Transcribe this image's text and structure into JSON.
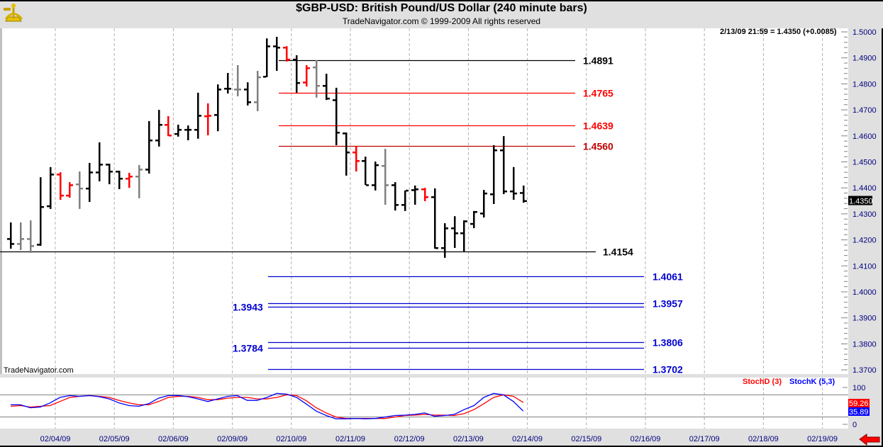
{
  "header": {
    "title": "$GBP-USD:  British Pound/US Dollar  (240 minute bars)",
    "subtitle": "TradeNavigator.com © 1999-2009 All rights reserved",
    "logo": "sextant-logo",
    "readout": "2/13/09 21:59 = 1.4350 (+0.0085)"
  },
  "watermark": "TradeNavigator.com",
  "colors": {
    "up": "#000000",
    "down": "#ff0000",
    "neutral": "#808080",
    "axis_text": "#000080",
    "stochD": "#ff0000",
    "stochK": "#0000ff",
    "panel_bg": "#e0e0e0"
  },
  "chart_data": [
    {
      "type": "ohlc",
      "title": "$GBP-USD:  British Pound/US Dollar  (240 minute bars)",
      "ylim": [
        1.365,
        1.5015
      ],
      "y_ticks": [
        "1.3700",
        "1.3800",
        "1.3900",
        "1.4000",
        "1.4100",
        "1.4200",
        "1.4300",
        "1.4400",
        "1.4500",
        "1.4600",
        "1.4700",
        "1.4800",
        "1.4900",
        "1.5000"
      ],
      "x_ticks": [
        "02/04/09",
        "02/05/09",
        "02/06/09",
        "02/09/09",
        "02/10/09",
        "02/11/09",
        "02/12/09",
        "02/13/09",
        "02/14/09",
        "02/15/09",
        "02/16/09",
        "02/17/09",
        "02/18/09",
        "02/19/09"
      ],
      "grid": "vertical dashed",
      "last_price": "1.4350",
      "bars": [
        {
          "o": 1.4204,
          "h": 1.4267,
          "l": 1.4166,
          "c": 1.4185,
          "color": "black"
        },
        {
          "o": 1.4185,
          "h": 1.4267,
          "l": 1.4161,
          "c": 1.4204,
          "color": "gray"
        },
        {
          "o": 1.4204,
          "h": 1.4275,
          "l": 1.415,
          "c": 1.4177,
          "color": "gray"
        },
        {
          "o": 1.4182,
          "h": 1.4441,
          "l": 1.4177,
          "c": 1.4327,
          "color": "black"
        },
        {
          "o": 1.433,
          "h": 1.448,
          "l": 1.4319,
          "c": 1.4452,
          "color": "black"
        },
        {
          "o": 1.4452,
          "h": 1.446,
          "l": 1.4354,
          "c": 1.4371,
          "color": "red"
        },
        {
          "o": 1.4371,
          "h": 1.4422,
          "l": 1.4362,
          "c": 1.4411,
          "color": "red"
        },
        {
          "o": 1.4414,
          "h": 1.4463,
          "l": 1.4319,
          "c": 1.4398,
          "color": "gray"
        },
        {
          "o": 1.4398,
          "h": 1.4496,
          "l": 1.4346,
          "c": 1.446,
          "color": "black"
        },
        {
          "o": 1.446,
          "h": 1.4575,
          "l": 1.4425,
          "c": 1.449,
          "color": "black"
        },
        {
          "o": 1.449,
          "h": 1.4493,
          "l": 1.4414,
          "c": 1.4463,
          "color": "black"
        },
        {
          "o": 1.4463,
          "h": 1.4466,
          "l": 1.4395,
          "c": 1.4436,
          "color": "black"
        },
        {
          "o": 1.4436,
          "h": 1.4458,
          "l": 1.44,
          "c": 1.4444,
          "color": "red"
        },
        {
          "o": 1.4444,
          "h": 1.4488,
          "l": 1.436,
          "c": 1.4471,
          "color": "gray"
        },
        {
          "o": 1.4471,
          "h": 1.4657,
          "l": 1.4455,
          "c": 1.4583,
          "color": "black"
        },
        {
          "o": 1.4583,
          "h": 1.47,
          "l": 1.4559,
          "c": 1.4643,
          "color": "black"
        },
        {
          "o": 1.4643,
          "h": 1.4676,
          "l": 1.4599,
          "c": 1.4602,
          "color": "red"
        },
        {
          "o": 1.4608,
          "h": 1.4643,
          "l": 1.4597,
          "c": 1.4624,
          "color": "black"
        },
        {
          "o": 1.4624,
          "h": 1.464,
          "l": 1.4583,
          "c": 1.4624,
          "color": "black"
        },
        {
          "o": 1.4624,
          "h": 1.4766,
          "l": 1.4589,
          "c": 1.4678,
          "color": "black"
        },
        {
          "o": 1.4676,
          "h": 1.4725,
          "l": 1.4602,
          "c": 1.4678,
          "color": "red"
        },
        {
          "o": 1.4681,
          "h": 1.4798,
          "l": 1.4618,
          "c": 1.4779,
          "color": "black"
        },
        {
          "o": 1.4782,
          "h": 1.4842,
          "l": 1.4763,
          "c": 1.4782,
          "color": "black"
        },
        {
          "o": 1.4779,
          "h": 1.4872,
          "l": 1.4752,
          "c": 1.4779,
          "color": "gray"
        },
        {
          "o": 1.4779,
          "h": 1.4806,
          "l": 1.4717,
          "c": 1.473,
          "color": "black"
        },
        {
          "o": 1.473,
          "h": 1.485,
          "l": 1.4695,
          "c": 1.4826,
          "color": "gray"
        },
        {
          "o": 1.4828,
          "h": 1.4975,
          "l": 1.4826,
          "c": 1.4945,
          "color": "black"
        },
        {
          "o": 1.4945,
          "h": 1.4981,
          "l": 1.485,
          "c": 1.494,
          "color": "black"
        },
        {
          "o": 1.494,
          "h": 1.4945,
          "l": 1.4886,
          "c": 1.4894,
          "color": "red"
        },
        {
          "o": 1.4894,
          "h": 1.491,
          "l": 1.4766,
          "c": 1.4804,
          "color": "black"
        },
        {
          "o": 1.4806,
          "h": 1.4872,
          "l": 1.479,
          "c": 1.4861,
          "color": "red"
        },
        {
          "o": 1.4864,
          "h": 1.4891,
          "l": 1.4747,
          "c": 1.4793,
          "color": "gray"
        },
        {
          "o": 1.4793,
          "h": 1.4839,
          "l": 1.4738,
          "c": 1.4744,
          "color": "black"
        },
        {
          "o": 1.4738,
          "h": 1.4785,
          "l": 1.4564,
          "c": 1.4613,
          "color": "black"
        },
        {
          "o": 1.461,
          "h": 1.4613,
          "l": 1.4447,
          "c": 1.4537,
          "color": "black"
        },
        {
          "o": 1.4537,
          "h": 1.4561,
          "l": 1.4463,
          "c": 1.4504,
          "color": "red"
        },
        {
          "o": 1.4504,
          "h": 1.452,
          "l": 1.4411,
          "c": 1.4411,
          "color": "black"
        },
        {
          "o": 1.4411,
          "h": 1.4501,
          "l": 1.439,
          "c": 1.4488,
          "color": "black"
        },
        {
          "o": 1.4485,
          "h": 1.455,
          "l": 1.4335,
          "c": 1.4411,
          "color": "gray"
        },
        {
          "o": 1.4411,
          "h": 1.4422,
          "l": 1.4313,
          "c": 1.4335,
          "color": "black"
        },
        {
          "o": 1.4335,
          "h": 1.439,
          "l": 1.4311,
          "c": 1.439,
          "color": "black"
        },
        {
          "o": 1.4392,
          "h": 1.4409,
          "l": 1.4335,
          "c": 1.4395,
          "color": "black"
        },
        {
          "o": 1.4395,
          "h": 1.44,
          "l": 1.4349,
          "c": 1.4365,
          "color": "red"
        },
        {
          "o": 1.4365,
          "h": 1.4398,
          "l": 1.4166,
          "c": 1.4169,
          "color": "black"
        },
        {
          "o": 1.4169,
          "h": 1.4264,
          "l": 1.4131,
          "c": 1.4245,
          "color": "black"
        },
        {
          "o": 1.4245,
          "h": 1.4291,
          "l": 1.4169,
          "c": 1.4226,
          "color": "black"
        },
        {
          "o": 1.4226,
          "h": 1.4275,
          "l": 1.4153,
          "c": 1.4272,
          "color": "black"
        },
        {
          "o": 1.4262,
          "h": 1.4311,
          "l": 1.4245,
          "c": 1.4308,
          "color": "black"
        },
        {
          "o": 1.4302,
          "h": 1.4392,
          "l": 1.4286,
          "c": 1.4379,
          "color": "black"
        },
        {
          "o": 1.4376,
          "h": 1.4564,
          "l": 1.4338,
          "c": 1.4545,
          "color": "black"
        },
        {
          "o": 1.4545,
          "h": 1.4599,
          "l": 1.4376,
          "c": 1.4387,
          "color": "black"
        },
        {
          "o": 1.4387,
          "h": 1.448,
          "l": 1.4354,
          "c": 1.4379,
          "color": "black"
        },
        {
          "o": 1.4381,
          "h": 1.4409,
          "l": 1.4343,
          "c": 1.435,
          "color": "black"
        }
      ],
      "levels": [
        {
          "value": 1.4891,
          "label": "1.4891",
          "color": "#000000",
          "label_side": "right"
        },
        {
          "value": 1.4765,
          "label": "1.4765",
          "color": "#ff0000",
          "label_side": "right"
        },
        {
          "value": 1.4639,
          "label": "1.4639",
          "color": "#ff0000",
          "label_side": "right"
        },
        {
          "value": 1.456,
          "label": "1.4560",
          "color": "#c00000",
          "label_side": "right"
        },
        {
          "value": 1.4154,
          "label": "1.4154",
          "color": "#000000",
          "label_side": "right"
        },
        {
          "value": 1.4061,
          "label": "1.4061",
          "color": "#0000d0",
          "label_side": "right"
        },
        {
          "value": 1.3957,
          "label": "1.3957",
          "color": "#0000d0",
          "label_side": "right"
        },
        {
          "value": 1.3943,
          "label": "1.3943",
          "color": "#0000d0",
          "label_side": "left"
        },
        {
          "value": 1.3806,
          "label": "1.3806",
          "color": "#0000d0",
          "label_side": "right"
        },
        {
          "value": 1.3784,
          "label": "1.3784",
          "color": "#0000d0",
          "label_side": "left"
        },
        {
          "value": 1.3702,
          "label": "1.3702",
          "color": "#0000d0",
          "label_side": "right"
        }
      ]
    },
    {
      "type": "line",
      "ylim": [
        0,
        100
      ],
      "y_ticks": [
        "100",
        "0"
      ],
      "reference_lines": [
        80,
        20
      ],
      "series": [
        {
          "name": "StochD (3)",
          "color": "#ff0000",
          "last": "59.26",
          "values": [
            49,
            51,
            47,
            49,
            51,
            62,
            73,
            76,
            78,
            76,
            73,
            65,
            58,
            53,
            53,
            62,
            73,
            76,
            76,
            73,
            67,
            67,
            71,
            73,
            73,
            69,
            69,
            73,
            80,
            78,
            64,
            45,
            31,
            20,
            16,
            16,
            16,
            16,
            16,
            20,
            24,
            25,
            27,
            25,
            25,
            24,
            29,
            40,
            56,
            73,
            80,
            76,
            59.26
          ]
        },
        {
          "name": "StochK (5,3)",
          "color": "#0000ff",
          "last": "35.89",
          "values": [
            53,
            53,
            45,
            47,
            58,
            73,
            78,
            76,
            78,
            75,
            69,
            58,
            51,
            49,
            56,
            71,
            78,
            78,
            75,
            69,
            62,
            69,
            76,
            78,
            65,
            65,
            73,
            84,
            82,
            73,
            55,
            36,
            24,
            15,
            15,
            16,
            15,
            16,
            20,
            24,
            25,
            27,
            31,
            22,
            24,
            27,
            40,
            51,
            73,
            84,
            80,
            62,
            35.89
          ]
        }
      ]
    }
  ]
}
